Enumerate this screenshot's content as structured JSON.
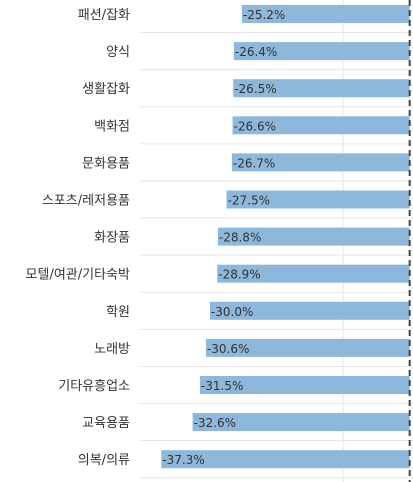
{
  "chart_data": {
    "type": "bar",
    "orientation": "horizontal",
    "categories": [
      "패션/잡화",
      "양식",
      "생활잡화",
      "백화점",
      "문화용품",
      "스포츠/레저용품",
      "화장품",
      "모텔/여관/기타숙박",
      "학원",
      "노래방",
      "기타유흥업소",
      "교육용품",
      "의복/의류"
    ],
    "values": [
      -25.2,
      -26.4,
      -26.5,
      -26.6,
      -26.7,
      -27.5,
      -28.8,
      -28.9,
      -30.0,
      -30.6,
      -31.5,
      -32.6,
      -37.3
    ],
    "value_labels": [
      "-25.2%",
      "-26.4%",
      "-26.5%",
      "-26.6%",
      "-26.7%",
      "-27.5%",
      "-28.8%",
      "-28.9%",
      "-30.0%",
      "-30.6%",
      "-31.5%",
      "-32.6%",
      "-37.3%"
    ],
    "xlim": [
      -40.5,
      0.5
    ],
    "reference_line": 0,
    "title": "",
    "xlabel": "",
    "ylabel": "",
    "grid": true,
    "colors": {
      "bar": "#8db8db",
      "reference_line": "#444444",
      "grid": "#e6e6e6",
      "text": "#333333"
    }
  }
}
